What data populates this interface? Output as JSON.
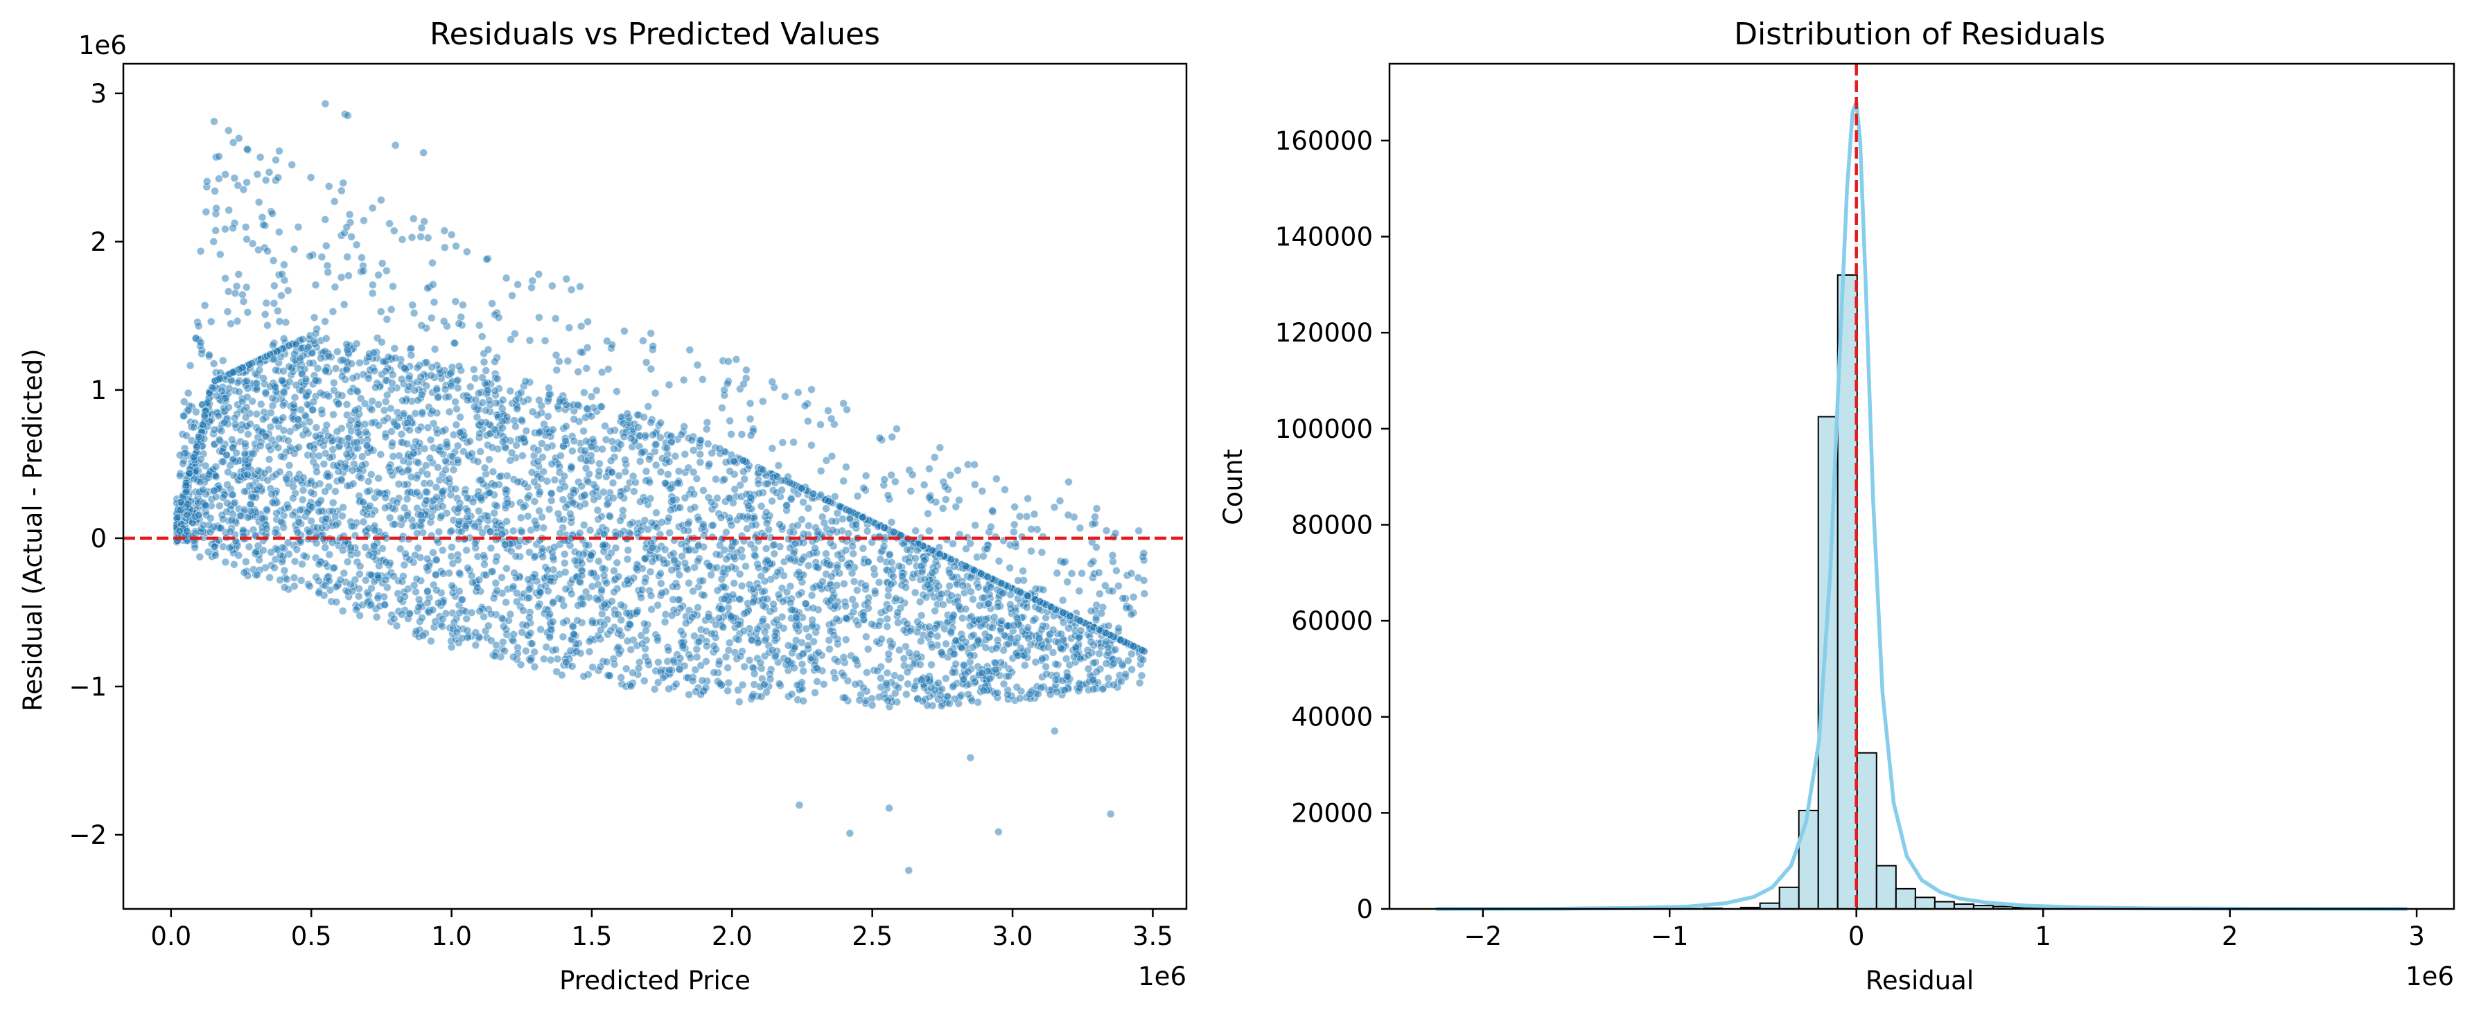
{
  "chart_data": [
    {
      "type": "scatter",
      "title": "Residuals vs Predicted Values",
      "xlabel": "Predicted Price",
      "ylabel": "Residual (Actual - Predicted)",
      "x_offset_label": "1e6",
      "y_offset_label": "1e6",
      "xlim": [
        -0.17,
        3.62
      ],
      "ylim": [
        -2.5,
        3.2
      ],
      "xticks": [
        0.0,
        0.5,
        1.0,
        1.5,
        2.0,
        2.5,
        3.0,
        3.5
      ],
      "xtick_labels": [
        "0.0",
        "0.5",
        "1.0",
        "1.5",
        "2.0",
        "2.5",
        "3.0",
        "3.5"
      ],
      "yticks": [
        -2,
        -1,
        0,
        1,
        2,
        3
      ],
      "ytick_labels": [
        "−2",
        "−1",
        "0",
        "1",
        "2",
        "3"
      ],
      "reference_line_y": 0,
      "point_color": "#1f77b4",
      "reference_color": "#e41a1c",
      "density_description_points": [
        [
          0.55,
          2.93
        ],
        [
          0.62,
          2.86
        ],
        [
          0.63,
          2.85
        ],
        [
          0.8,
          2.65
        ],
        [
          0.9,
          2.6
        ],
        [
          0.27,
          2.4
        ],
        [
          2.24,
          -1.8
        ],
        [
          2.63,
          -2.24
        ],
        [
          2.95,
          -1.98
        ],
        [
          3.35,
          -1.86
        ],
        [
          2.56,
          -1.82
        ],
        [
          2.42,
          -1.99
        ],
        [
          3.45,
          0.05
        ],
        [
          3.3,
          0.2
        ],
        [
          3.2,
          0.38
        ],
        [
          3.28,
          -0.7
        ],
        [
          3.15,
          -1.3
        ],
        [
          2.85,
          -1.48
        ]
      ]
    },
    {
      "type": "bar",
      "title": "Distribution of Residuals",
      "xlabel": "Residual",
      "ylabel": "Count",
      "x_offset_label": "1e6",
      "xlim": [
        -2.5,
        3.2
      ],
      "ylim": [
        0,
        176000
      ],
      "xticks": [
        -2,
        -1,
        0,
        1,
        2,
        3
      ],
      "xtick_labels": [
        "−2",
        "−1",
        "0",
        "1",
        "2",
        "3"
      ],
      "yticks": [
        0,
        20000,
        40000,
        60000,
        80000,
        100000,
        120000,
        140000,
        160000
      ],
      "ytick_labels": [
        "0",
        "20000",
        "40000",
        "60000",
        "80000",
        "100000",
        "120000",
        "140000",
        "160000"
      ],
      "bin_width": 0.104,
      "bin_starts": [
        -0.62,
        -0.516,
        -0.412,
        -0.308,
        -0.204,
        -0.1,
        0.004,
        0.108,
        0.212,
        0.316,
        0.42,
        0.524,
        0.628,
        0.732,
        0.836,
        0.94
      ],
      "values": [
        300,
        1200,
        4500,
        20500,
        102500,
        132000,
        32500,
        9000,
        4200,
        2400,
        1500,
        1000,
        700,
        500,
        300,
        200
      ],
      "kde_x": [
        -2.25,
        -1.6,
        -1.2,
        -0.9,
        -0.7,
        -0.55,
        -0.45,
        -0.35,
        -0.27,
        -0.2,
        -0.14,
        -0.09,
        -0.05,
        -0.02,
        0.0,
        0.02,
        0.05,
        0.09,
        0.14,
        0.2,
        0.27,
        0.35,
        0.45,
        0.55,
        0.7,
        0.9,
        1.2,
        1.6,
        2.2,
        2.95
      ],
      "kde_y": [
        0,
        50,
        200,
        500,
        1200,
        2500,
        4500,
        9000,
        18000,
        35000,
        70000,
        115000,
        150000,
        166000,
        168000,
        160000,
        130000,
        85000,
        45000,
        22000,
        11000,
        6000,
        3500,
        2200,
        1300,
        700,
        300,
        120,
        40,
        0
      ],
      "bar_color": "#add8e6",
      "kde_color": "#87ceeb",
      "reference_line_x": 0,
      "reference_color": "#e41a1c"
    }
  ]
}
